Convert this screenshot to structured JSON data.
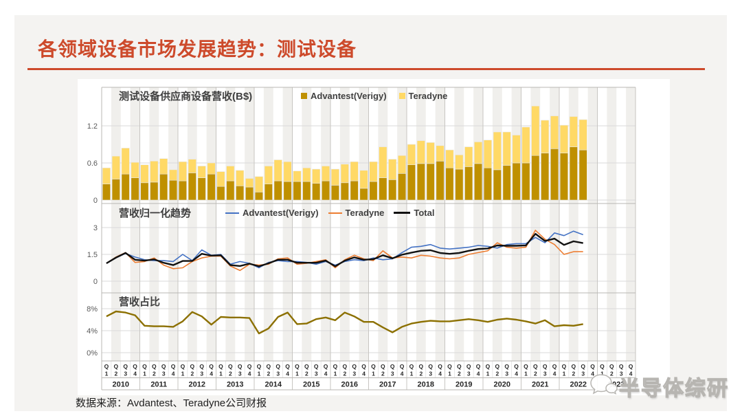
{
  "slide": {
    "title": "各领域设备市场发展趋势：测试设备",
    "footer": "数据来源：Avdantest、Teradyne公司财报",
    "watermark": "半导体综研",
    "accent_color": "#CD4A2B"
  },
  "x_axis": {
    "years": [
      "2010",
      "2011",
      "2012",
      "2013",
      "2014",
      "2015",
      "2016",
      "2017",
      "2018",
      "2019",
      "2020",
      "2021",
      "2022",
      "2023"
    ],
    "quarter_letter": "Q",
    "quarter_numbers": [
      "1",
      "2",
      "3",
      "4"
    ],
    "data_quarters": 51
  },
  "chart_data": [
    {
      "type": "bar",
      "stacked": true,
      "title": "测试设备供应商设备营收(B$)",
      "yticks": [
        {
          "value": 0,
          "label": "0"
        },
        {
          "value": 0.6,
          "label": "0.6"
        },
        {
          "value": 1.2,
          "label": "1.2"
        }
      ],
      "ylim": [
        0,
        1.8
      ],
      "series": [
        {
          "name": "Advantest(Verigy)",
          "color": "#BF9000",
          "values": [
            0.26,
            0.34,
            0.42,
            0.36,
            0.28,
            0.29,
            0.42,
            0.32,
            0.31,
            0.44,
            0.36,
            0.42,
            0.22,
            0.31,
            0.23,
            0.21,
            0.13,
            0.26,
            0.31,
            0.3,
            0.3,
            0.3,
            0.27,
            0.31,
            0.24,
            0.28,
            0.31,
            0.19,
            0.3,
            0.36,
            0.33,
            0.43,
            0.57,
            0.59,
            0.59,
            0.63,
            0.52,
            0.5,
            0.54,
            0.59,
            0.52,
            0.49,
            0.56,
            0.6,
            0.6,
            0.72,
            0.76,
            0.83,
            0.76,
            0.86,
            0.81
          ]
        },
        {
          "name": "Teradyne",
          "color": "#FFD966",
          "values": [
            0.26,
            0.37,
            0.42,
            0.25,
            0.29,
            0.34,
            0.25,
            0.17,
            0.31,
            0.22,
            0.19,
            0.18,
            0.24,
            0.24,
            0.25,
            0.14,
            0.25,
            0.29,
            0.34,
            0.32,
            0.17,
            0.22,
            0.23,
            0.24,
            0.26,
            0.3,
            0.31,
            0.29,
            0.32,
            0.5,
            0.33,
            0.29,
            0.33,
            0.37,
            0.34,
            0.25,
            0.29,
            0.23,
            0.32,
            0.35,
            0.45,
            0.61,
            0.54,
            0.45,
            0.58,
            0.8,
            0.53,
            0.53,
            0.45,
            0.49,
            0.49
          ]
        }
      ]
    },
    {
      "type": "line",
      "title": "营收归一化趋势",
      "yticks": [
        {
          "value": 0,
          "label": "0"
        },
        {
          "value": 1.5,
          "label": "1.5"
        },
        {
          "value": 3,
          "label": "3"
        }
      ],
      "ylim": [
        0,
        3.2
      ],
      "series": [
        {
          "name": "Advantest(Verigy)",
          "color": "#4472C4",
          "emphasis": false,
          "values": [
            1.0,
            1.3,
            1.55,
            1.35,
            1.2,
            1.15,
            1.15,
            1.1,
            1.5,
            1.15,
            1.75,
            1.45,
            1.5,
            0.95,
            1.1,
            1.0,
            0.75,
            1.05,
            1.15,
            1.1,
            1.1,
            1.05,
            0.95,
            1.1,
            0.9,
            1.1,
            1.2,
            1.15,
            1.3,
            1.2,
            1.25,
            1.6,
            1.9,
            1.95,
            2.05,
            1.85,
            1.8,
            1.85,
            1.9,
            2.0,
            1.95,
            1.85,
            2.05,
            2.1,
            2.1,
            2.45,
            2.15,
            2.7,
            2.55,
            2.8,
            2.6
          ]
        },
        {
          "name": "Teradyne",
          "color": "#ED7D31",
          "emphasis": false,
          "values": [
            1.0,
            1.35,
            1.6,
            1.05,
            1.1,
            1.3,
            0.9,
            0.7,
            0.75,
            1.1,
            1.3,
            1.4,
            1.4,
            0.85,
            0.6,
            0.95,
            0.9,
            0.95,
            1.25,
            1.3,
            0.95,
            1.0,
            1.1,
            1.2,
            0.75,
            1.2,
            1.45,
            1.25,
            1.15,
            1.7,
            1.3,
            1.35,
            1.3,
            1.45,
            1.4,
            1.3,
            1.25,
            1.3,
            1.5,
            1.6,
            1.7,
            2.15,
            1.9,
            1.85,
            1.9,
            2.85,
            2.35,
            2.05,
            1.5,
            1.65,
            1.65
          ]
        },
        {
          "name": "Total",
          "color": "#111111",
          "emphasis": true,
          "values": [
            1.0,
            1.32,
            1.58,
            1.2,
            1.15,
            1.22,
            1.03,
            0.9,
            1.13,
            1.13,
            1.53,
            1.43,
            1.45,
            0.9,
            0.85,
            0.98,
            0.83,
            1.0,
            1.2,
            1.2,
            1.03,
            1.03,
            1.03,
            1.15,
            0.83,
            1.15,
            1.33,
            1.2,
            1.23,
            1.45,
            1.28,
            1.48,
            1.6,
            1.7,
            1.73,
            1.58,
            1.53,
            1.58,
            1.7,
            1.8,
            1.83,
            2.0,
            1.98,
            1.98,
            2.0,
            2.65,
            2.25,
            2.38,
            2.03,
            2.23,
            2.13
          ]
        }
      ]
    },
    {
      "type": "line",
      "title": "营收占比",
      "yticks": [
        {
          "value": 0,
          "label": "0%"
        },
        {
          "value": 4,
          "label": "4%"
        },
        {
          "value": 8,
          "label": "8%"
        }
      ],
      "ylim": [
        0,
        9
      ],
      "series": [
        {
          "name": "营收占比",
          "color": "#8C7000",
          "emphasis": true,
          "values": [
            6.6,
            7.5,
            7.3,
            6.8,
            4.9,
            4.8,
            4.8,
            4.7,
            5.7,
            7.4,
            6.6,
            5.1,
            6.5,
            6.4,
            6.4,
            6.3,
            3.5,
            4.4,
            6.5,
            7.3,
            5.2,
            5.3,
            6.1,
            6.4,
            5.9,
            7.3,
            6.6,
            5.6,
            5.6,
            4.6,
            3.7,
            4.7,
            5.3,
            5.6,
            5.8,
            5.7,
            5.7,
            5.9,
            6.1,
            5.9,
            5.6,
            6.0,
            6.2,
            6.0,
            5.7,
            5.3,
            5.9,
            4.8,
            5.0,
            4.9,
            5.2
          ]
        }
      ]
    }
  ]
}
